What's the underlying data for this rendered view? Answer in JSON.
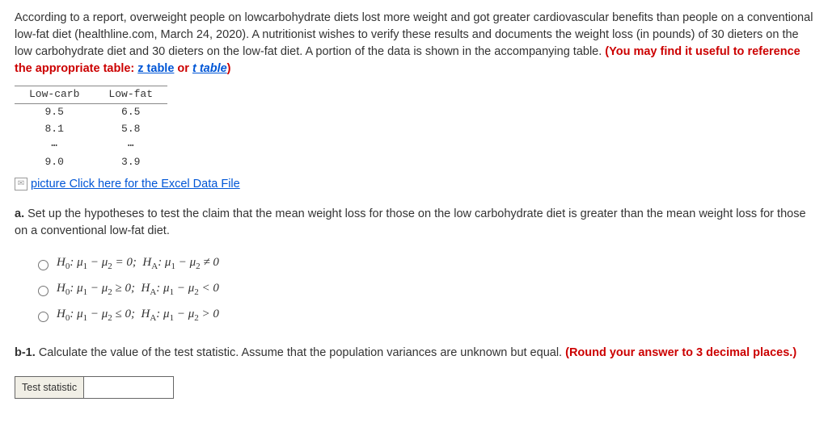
{
  "intro": {
    "text_before_hint": "According to a report, overweight people on lowcarbohydrate diets lost more weight and got greater cardiovascular benefits than people on a conventional low-fat diet (healthline.com, March 24, 2020). A nutritionist wishes to verify these results and documents the weight loss (in pounds) of 30 dieters on the low carbohydrate diet and 30 dieters on the low-fat diet. A portion of the data is shown in the accompanying table. ",
    "hint_prefix": "(You may find it useful to reference the appropriate table: ",
    "link_z": "z table",
    "sep": " or ",
    "link_t": "t table",
    "hint_suffix": ")"
  },
  "table": {
    "col1": "Low-carb",
    "col2": "Low-fat",
    "rows": [
      [
        "9.5",
        "6.5"
      ],
      [
        "8.1",
        "5.8"
      ],
      [
        "⋯",
        "⋯"
      ],
      [
        "9.0",
        "3.9"
      ]
    ]
  },
  "excel": {
    "icon_alt": "picture",
    "link": "Click here for the Excel Data File"
  },
  "qa": {
    "label": "a. ",
    "text": "Set up the hypotheses to test the claim that the mean weight loss for those on the low carbohydrate diet is greater than the mean weight loss for those on a conventional low-fat diet."
  },
  "options": {
    "o1": "H0: μ1 − μ2 = 0;  HA: μ1 − μ2 ≠ 0",
    "o2": "H0: μ1 − μ2 ≥ 0;  HA: μ1 − μ2 < 0",
    "o3": "H0: μ1 − μ2 ≤ 0;  HA: μ1 − μ2 > 0"
  },
  "qb1": {
    "label": "b-1. ",
    "text": "Calculate the value of the test statistic. Assume that the population variances are unknown but equal. ",
    "hint": "(Round your answer to 3 decimal places.)"
  },
  "answer": {
    "label": "Test statistic",
    "value": ""
  }
}
